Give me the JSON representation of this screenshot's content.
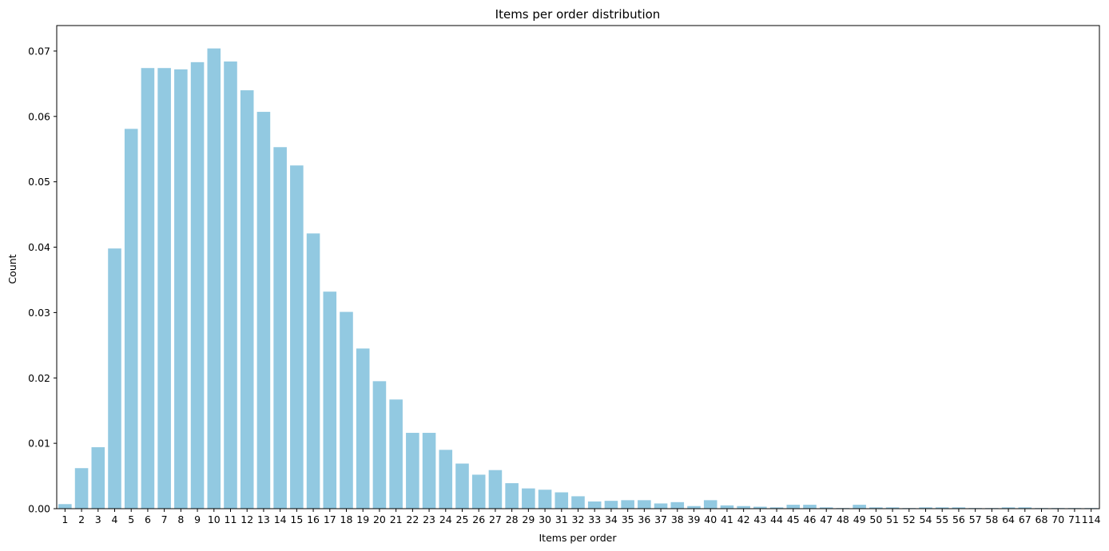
{
  "chart_data": {
    "type": "bar",
    "title": "Items per order distribution",
    "xlabel": "Items per order",
    "ylabel": "Count",
    "ylim": [
      0,
      0.0739
    ],
    "yticks": [
      "0.00",
      "0.01",
      "0.02",
      "0.03",
      "0.04",
      "0.05",
      "0.06",
      "0.07"
    ],
    "ytick_values": [
      0,
      0.01,
      0.02,
      0.03,
      0.04,
      0.05,
      0.06,
      0.07
    ],
    "grid": false,
    "bar_color": "#92C9E1",
    "categories": [
      "1",
      "2",
      "3",
      "4",
      "5",
      "6",
      "7",
      "8",
      "9",
      "10",
      "11",
      "12",
      "13",
      "14",
      "15",
      "16",
      "17",
      "18",
      "19",
      "20",
      "21",
      "22",
      "23",
      "24",
      "25",
      "26",
      "27",
      "28",
      "29",
      "30",
      "31",
      "32",
      "33",
      "34",
      "35",
      "36",
      "37",
      "38",
      "39",
      "40",
      "41",
      "42",
      "43",
      "44",
      "45",
      "46",
      "47",
      "48",
      "49",
      "50",
      "51",
      "52",
      "54",
      "55",
      "56",
      "57",
      "58",
      "64",
      "67",
      "68",
      "70",
      "71",
      "114"
    ],
    "values": [
      0.0007,
      0.0062,
      0.0094,
      0.0398,
      0.0581,
      0.0674,
      0.0674,
      0.0672,
      0.0683,
      0.0704,
      0.0684,
      0.064,
      0.0607,
      0.0553,
      0.0525,
      0.0421,
      0.0332,
      0.0301,
      0.0245,
      0.0195,
      0.0167,
      0.0116,
      0.0116,
      0.009,
      0.0069,
      0.0052,
      0.0059,
      0.0039,
      0.0031,
      0.0029,
      0.0025,
      0.0019,
      0.0011,
      0.0012,
      0.0013,
      0.0013,
      0.0008,
      0.001,
      0.0004,
      0.0013,
      0.0005,
      0.0004,
      0.0003,
      0.0002,
      0.0006,
      0.0006,
      0.0002,
      0.0001,
      0.0006,
      0.0002,
      0.0002,
      0.0001,
      0.0002,
      0.0002,
      0.0002,
      0.0001,
      0.0001,
      0.0002,
      0.0002,
      0.0001,
      0.0001,
      0.0001,
      0.0001
    ]
  }
}
